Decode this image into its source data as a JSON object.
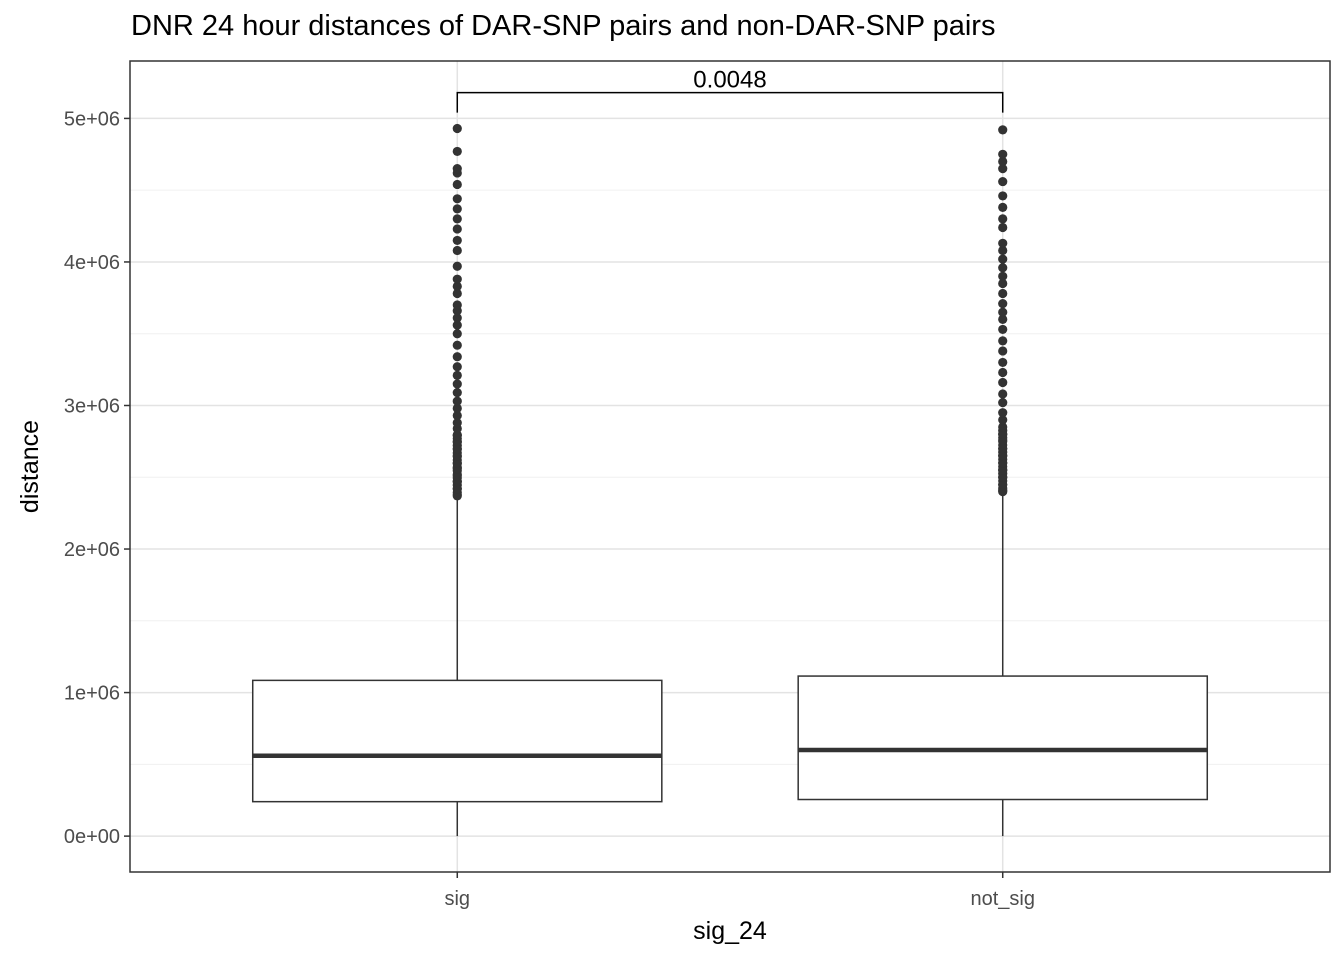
{
  "chart_data": {
    "type": "box",
    "title": "DNR 24 hour distances of DAR-SNP pairs and non-DAR-SNP pairs",
    "xlabel": "sig_24",
    "ylabel": "distance",
    "categories": [
      "sig",
      "not_sig"
    ],
    "y_ticks": [
      0,
      1000000,
      2000000,
      3000000,
      4000000,
      5000000
    ],
    "y_tick_labels": [
      "0e+00",
      "1e+06",
      "2e+06",
      "3e+06",
      "4e+06",
      "5e+06"
    ],
    "ylim": [
      -250000,
      5400000
    ],
    "grid": true,
    "boxes": [
      {
        "category": "sig",
        "min": 0,
        "q1": 240000,
        "median": 560000,
        "q3": 1085000,
        "whisker_high": 2370000,
        "outliers": [
          2380000,
          2420000,
          2470000,
          2510000,
          2560000,
          2600000,
          2650000,
          2700000,
          2750000,
          2790000,
          2840000,
          2880000,
          2930000,
          2980000,
          3030000,
          3090000,
          3150000,
          3210000,
          3270000,
          3340000,
          3420000,
          3500000,
          3560000,
          3610000,
          3660000,
          3700000,
          3780000,
          3830000,
          3880000,
          3970000,
          4080000,
          4150000,
          4230000,
          4300000,
          4370000,
          4440000,
          4540000,
          4620000,
          4650000,
          4770000,
          4930000
        ]
      },
      {
        "category": "not_sig",
        "min": 0,
        "q1": 255000,
        "median": 600000,
        "q3": 1115000,
        "whisker_high": 2400000,
        "outliers": [
          2410000,
          2450000,
          2500000,
          2550000,
          2600000,
          2650000,
          2700000,
          2760000,
          2800000,
          2850000,
          2900000,
          2950000,
          3020000,
          3080000,
          3160000,
          3230000,
          3300000,
          3380000,
          3450000,
          3530000,
          3600000,
          3650000,
          3710000,
          3780000,
          3850000,
          3900000,
          3960000,
          4020000,
          4080000,
          4130000,
          4240000,
          4300000,
          4380000,
          4460000,
          4560000,
          4650000,
          4700000,
          4750000,
          4920000
        ]
      }
    ],
    "annotation": {
      "label": "0.0048",
      "between": [
        "sig",
        "not_sig"
      ],
      "y": 5180000
    }
  }
}
